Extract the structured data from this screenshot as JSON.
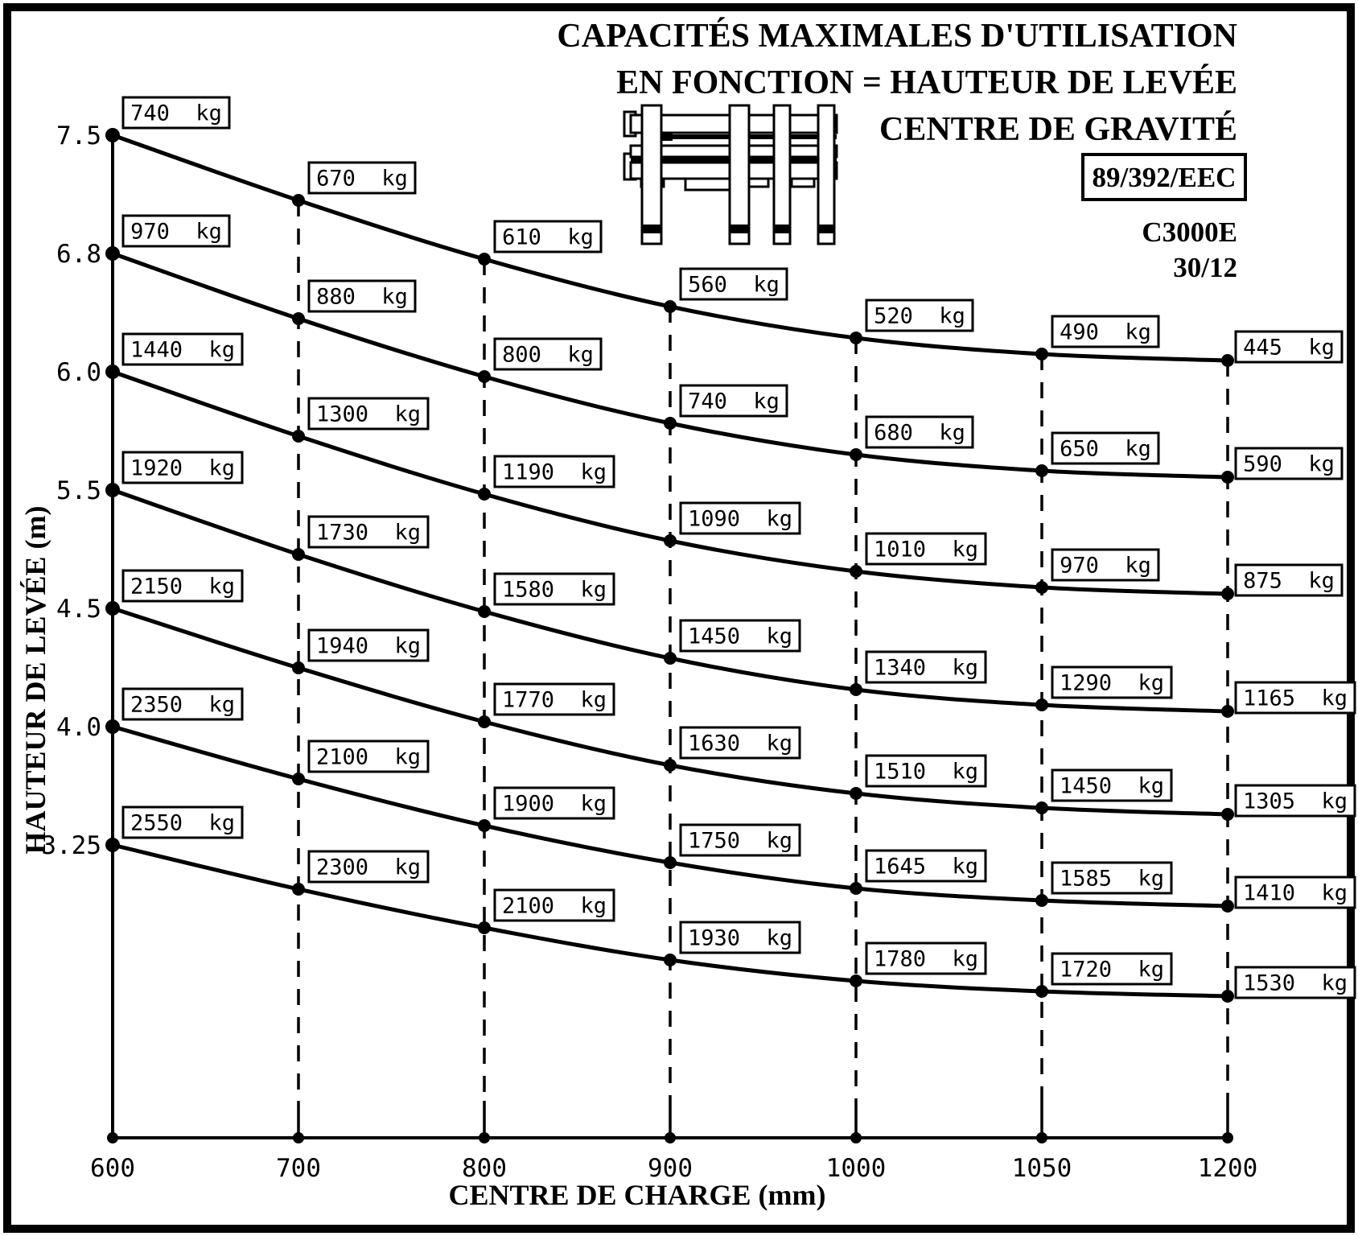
{
  "header": {
    "title_lines": [
      "CAPACITÉS MAXIMALES D'UTILISATION",
      "EN FONCTION = HAUTEUR DE LEVÉE",
      "CENTRE DE GRAVITÉ"
    ],
    "regulation_badge": "89/392/EEC",
    "model": "C3000E",
    "model_variant": "30/12"
  },
  "chart_data": {
    "type": "line",
    "title": "CAPACITÉS MAXIMALES D'UTILISATION EN FONCTION = HAUTEUR DE LEVÉE CENTRE DE GRAVITÉ",
    "xlabel": "CENTRE DE CHARGE (mm)",
    "ylabel": "HAUTEUR DE LEVÉE (m)",
    "unit": "kg",
    "x_categories_mm": [
      "600",
      "700",
      "800",
      "900",
      "1000",
      "1050",
      "1200"
    ],
    "y_tick_labels_m": [
      "7.5",
      "6.8",
      "6.0",
      "5.5",
      "4.5",
      "4.0",
      "3.25"
    ],
    "grid": "dashed vertical guide lines at each load-centre column",
    "legend": "none",
    "series": [
      {
        "height_m": "7.5",
        "values_kg": [
          740,
          670,
          610,
          560,
          520,
          490,
          445
        ]
      },
      {
        "height_m": "6.8",
        "values_kg": [
          970,
          880,
          800,
          740,
          680,
          650,
          590
        ]
      },
      {
        "height_m": "6.0",
        "values_kg": [
          1440,
          1300,
          1190,
          1090,
          1010,
          970,
          875
        ]
      },
      {
        "height_m": "5.5",
        "values_kg": [
          1920,
          1730,
          1580,
          1450,
          1340,
          1290,
          1165
        ]
      },
      {
        "height_m": "4.5",
        "values_kg": [
          2150,
          1940,
          1770,
          1630,
          1510,
          1450,
          1305
        ]
      },
      {
        "height_m": "4.0",
        "values_kg": [
          2350,
          2100,
          1900,
          1750,
          1645,
          1585,
          1410
        ]
      },
      {
        "height_m": "3.25",
        "values_kg": [
          2550,
          2300,
          2100,
          1930,
          1780,
          1720,
          1530
        ]
      }
    ]
  }
}
